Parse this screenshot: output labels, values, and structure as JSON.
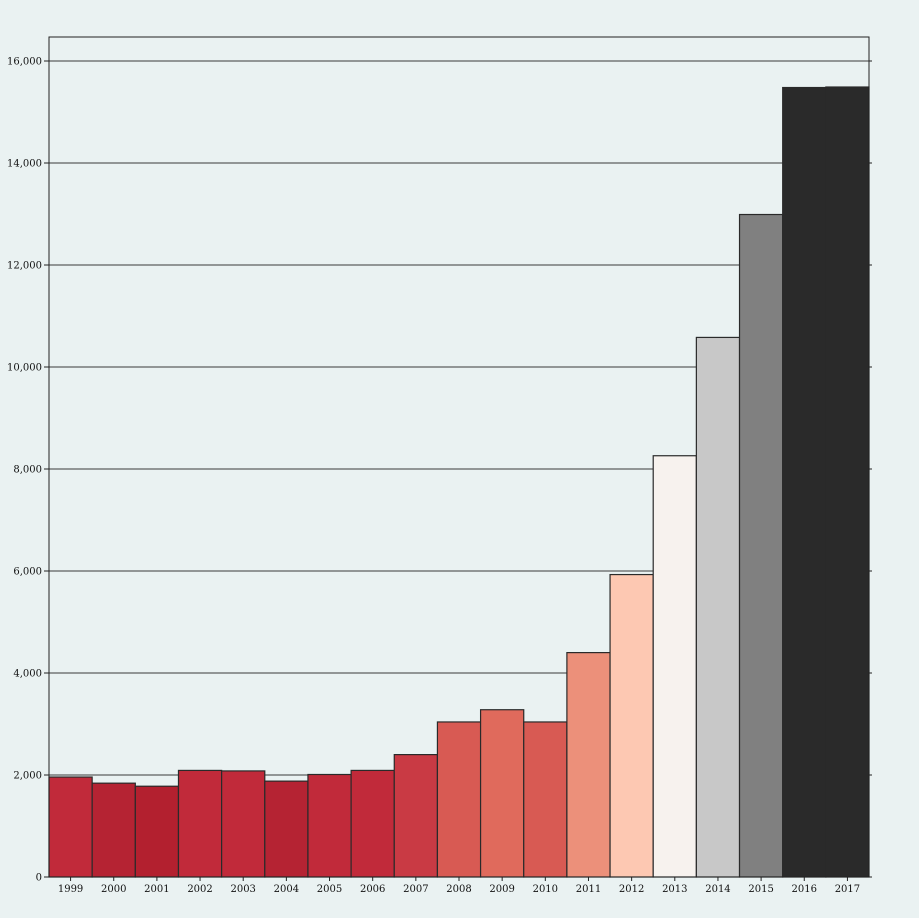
{
  "chart_data": {
    "type": "bar",
    "title": "",
    "xlabel": "",
    "ylabel": "",
    "ylim": [
      0,
      16500
    ],
    "grid": true,
    "categories": [
      "1999",
      "2000",
      "2001",
      "2002",
      "2003",
      "2004",
      "2005",
      "2006",
      "2007",
      "2008",
      "2009",
      "2010",
      "2011",
      "2012",
      "2013",
      "2014",
      "2015",
      "2016",
      "2017"
    ],
    "values": [
      1960,
      1840,
      1780,
      2090,
      2080,
      1880,
      2010,
      2090,
      2400,
      3040,
      3280,
      3040,
      4400,
      5930,
      8260,
      10580,
      12990,
      15480,
      15490
    ],
    "colors": [
      "#c12a3a",
      "#b52333",
      "#b3202f",
      "#c12a3a",
      "#c12a3a",
      "#b52333",
      "#c12a3a",
      "#c12a3a",
      "#c93a44",
      "#d85a53",
      "#e06a5c",
      "#d85a53",
      "#ec907a",
      "#fdc8b2",
      "#f7f2ee",
      "#c8c8c8",
      "#808080",
      "#2a2a2a",
      "#2a2a2a"
    ],
    "yticks": [
      0,
      2000,
      4000,
      6000,
      8000,
      10000,
      12000,
      14000,
      16000
    ],
    "ytick_labels": [
      "0",
      "2,000",
      "4,000",
      "6,000",
      "8,000",
      "10,000",
      "12,000",
      "14,000",
      "16,000"
    ]
  }
}
